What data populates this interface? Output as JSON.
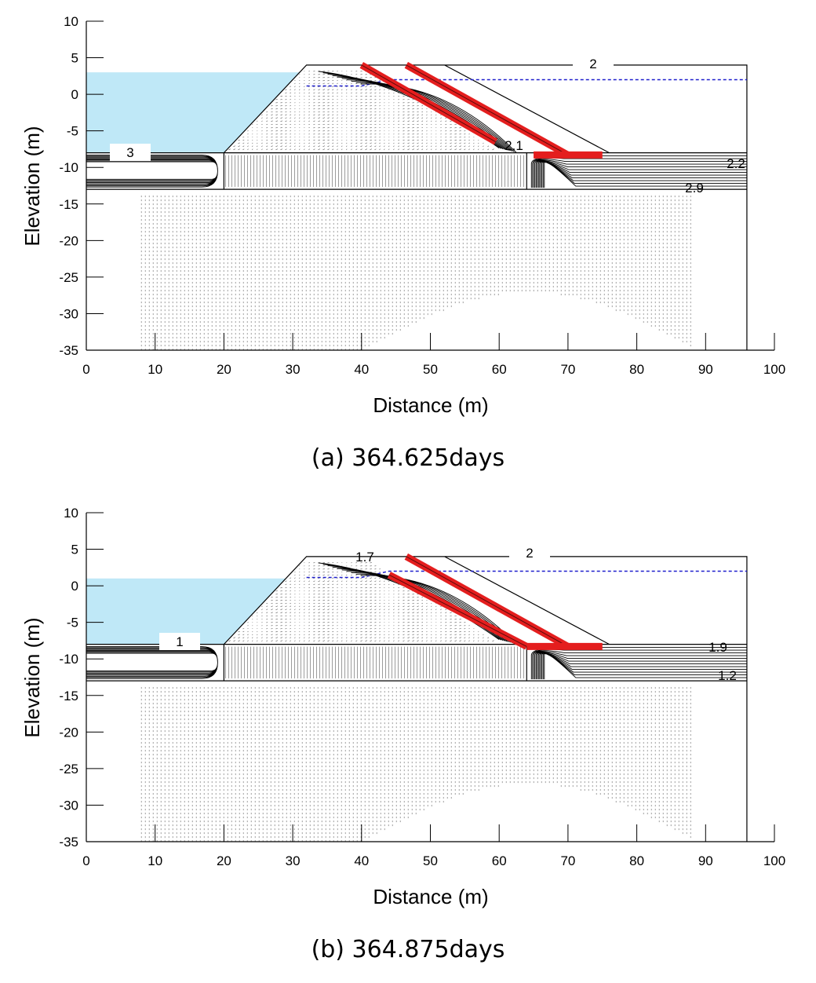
{
  "axis": {
    "xlabel": "Distance (m)",
    "ylabel": "Elevation (m)",
    "xlim": [
      0,
      100
    ],
    "ylim": [
      -35,
      10
    ],
    "xticks": [
      "0",
      "10",
      "20",
      "30",
      "40",
      "50",
      "60",
      "70",
      "80",
      "90",
      "100"
    ],
    "yticks": [
      "10",
      "5",
      "0",
      "-5",
      "-10",
      "-15",
      "-20",
      "-25",
      "-30",
      "-35"
    ]
  },
  "colors": {
    "water": "#bfe8f7",
    "drain": "#e41e1e",
    "phreatic_line": "#1f1fcc",
    "lines": "#000000",
    "vectors": "#222222"
  },
  "panels": [
    {
      "id": "a",
      "caption": "(a) 364.625days",
      "water_level_m": 3,
      "phreatic_y_m": 2,
      "contour_labels": [
        "2",
        "3",
        "2.1",
        "2.2",
        "2.9"
      ]
    },
    {
      "id": "b",
      "caption": "(b) 364.875days",
      "water_level_m": 1,
      "phreatic_y_m": 2,
      "contour_labels": [
        "2",
        "1",
        "1.7",
        "1.9",
        "1.2"
      ]
    }
  ],
  "geometry_m": {
    "foundation_top": -8,
    "foundation_bottom": -13,
    "core_x": [
      20,
      64
    ],
    "crest_x": [
      32,
      76
    ],
    "crest_y": 4,
    "right_boundary_x": 96
  }
}
